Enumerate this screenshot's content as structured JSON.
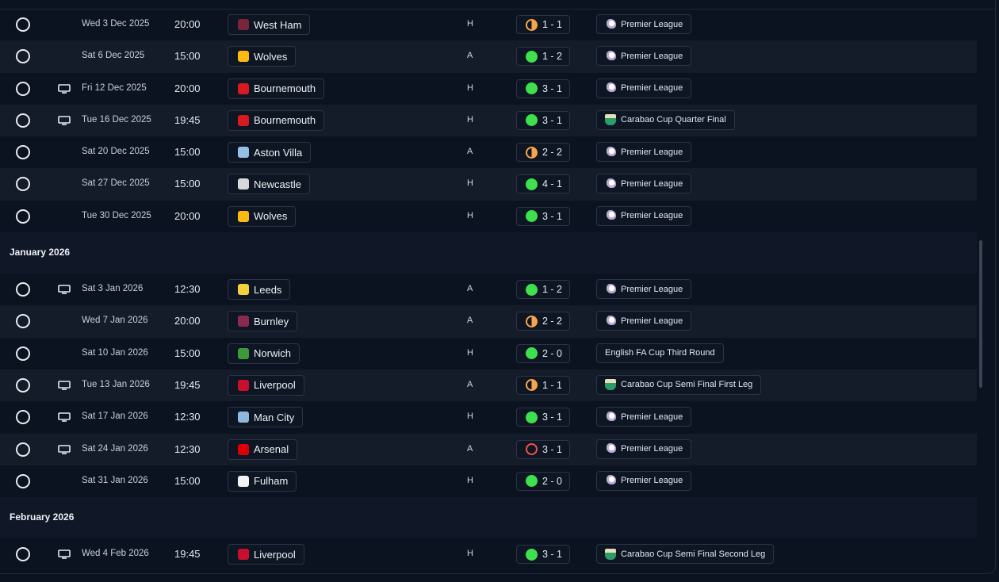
{
  "colors": {
    "background": "#0b1220",
    "row_alt": "#141c2a",
    "win": "#3ee04e",
    "draw": "#f7a44b",
    "loss": "#f0524a"
  },
  "sections": [
    {
      "month": "",
      "fixtures": [
        {
          "tv": false,
          "date": "Wed 3 Dec 2025",
          "time": "20:00",
          "team": "West Ham",
          "crest": "west-ham-crest-icon",
          "crest_color": "#7a263a",
          "venue": "H",
          "outcome": "draw",
          "score": "1 - 1",
          "competition": "Premier League",
          "comp_icon": "pl"
        },
        {
          "tv": false,
          "date": "Sat 6 Dec 2025",
          "time": "15:00",
          "team": "Wolves",
          "crest": "wolves-crest-icon",
          "crest_color": "#fdb913",
          "venue": "A",
          "outcome": "win",
          "score": "1 - 2",
          "competition": "Premier League",
          "comp_icon": "pl"
        },
        {
          "tv": true,
          "date": "Fri 12 Dec 2025",
          "time": "20:00",
          "team": "Bournemouth",
          "crest": "bournemouth-crest-icon",
          "crest_color": "#d71920",
          "venue": "H",
          "outcome": "win",
          "score": "3 - 1",
          "competition": "Premier League",
          "comp_icon": "pl"
        },
        {
          "tv": true,
          "date": "Tue 16 Dec 2025",
          "time": "19:45",
          "team": "Bournemouth",
          "crest": "bournemouth-crest-icon",
          "crest_color": "#d71920",
          "venue": "H",
          "outcome": "win",
          "score": "3 - 1",
          "competition": "Carabao Cup Quarter Final",
          "comp_icon": "cc"
        },
        {
          "tv": false,
          "date": "Sat 20 Dec 2025",
          "time": "15:00",
          "team": "Aston Villa",
          "crest": "aston-villa-crest-icon",
          "crest_color": "#95bfe5",
          "venue": "A",
          "outcome": "draw",
          "score": "2 - 2",
          "competition": "Premier League",
          "comp_icon": "pl"
        },
        {
          "tv": false,
          "date": "Sat 27 Dec 2025",
          "time": "15:00",
          "team": "Newcastle",
          "crest": "newcastle-crest-icon",
          "crest_color": "#d8d8d8",
          "venue": "H",
          "outcome": "win",
          "score": "4 - 1",
          "competition": "Premier League",
          "comp_icon": "pl"
        },
        {
          "tv": false,
          "date": "Tue 30 Dec 2025",
          "time": "20:00",
          "team": "Wolves",
          "crest": "wolves-crest-icon",
          "crest_color": "#fdb913",
          "venue": "H",
          "outcome": "win",
          "score": "3 - 1",
          "competition": "Premier League",
          "comp_icon": "pl"
        }
      ]
    },
    {
      "month": "January 2026",
      "fixtures": [
        {
          "tv": true,
          "date": "Sat 3 Jan 2026",
          "time": "12:30",
          "team": "Leeds",
          "crest": "leeds-crest-icon",
          "crest_color": "#f2d13a",
          "venue": "A",
          "outcome": "win",
          "score": "1 - 2",
          "competition": "Premier League",
          "comp_icon": "pl"
        },
        {
          "tv": false,
          "date": "Wed 7 Jan 2026",
          "time": "20:00",
          "team": "Burnley",
          "crest": "burnley-crest-icon",
          "crest_color": "#8a2a4f",
          "venue": "A",
          "outcome": "draw",
          "score": "2 - 2",
          "competition": "Premier League",
          "comp_icon": "pl"
        },
        {
          "tv": false,
          "date": "Sat 10 Jan 2026",
          "time": "15:00",
          "team": "Norwich",
          "crest": "norwich-crest-icon",
          "crest_color": "#3d9a3a",
          "venue": "H",
          "outcome": "win",
          "score": "2 - 0",
          "competition": "English FA Cup Third Round",
          "comp_icon": ""
        },
        {
          "tv": true,
          "date": "Tue 13 Jan 2026",
          "time": "19:45",
          "team": "Liverpool",
          "crest": "liverpool-crest-icon",
          "crest_color": "#c8102e",
          "venue": "A",
          "outcome": "draw",
          "score": "1 - 1",
          "competition": "Carabao Cup Semi Final First Leg",
          "comp_icon": "cc"
        },
        {
          "tv": true,
          "date": "Sat 17 Jan 2026",
          "time": "12:30",
          "team": "Man City",
          "crest": "man-city-crest-icon",
          "crest_color": "#8fb8de",
          "venue": "H",
          "outcome": "win",
          "score": "3 - 1",
          "competition": "Premier League",
          "comp_icon": "pl"
        },
        {
          "tv": true,
          "date": "Sat 24 Jan 2026",
          "time": "12:30",
          "team": "Arsenal",
          "crest": "arsenal-crest-icon",
          "crest_color": "#db0007",
          "venue": "A",
          "outcome": "loss",
          "score": "3 - 1",
          "competition": "Premier League",
          "comp_icon": "pl"
        },
        {
          "tv": false,
          "date": "Sat 31 Jan 2026",
          "time": "15:00",
          "team": "Fulham",
          "crest": "fulham-crest-icon",
          "crest_color": "#f2f2f2",
          "venue": "H",
          "outcome": "win",
          "score": "2 - 0",
          "competition": "Premier League",
          "comp_icon": "pl"
        }
      ]
    },
    {
      "month": "February 2026",
      "fixtures": [
        {
          "tv": true,
          "date": "Wed 4 Feb 2026",
          "time": "19:45",
          "team": "Liverpool",
          "crest": "liverpool-crest-icon",
          "crest_color": "#c8102e",
          "venue": "H",
          "outcome": "win",
          "score": "3 - 1",
          "competition": "Carabao Cup Semi Final Second Leg",
          "comp_icon": "cc"
        }
      ]
    }
  ]
}
